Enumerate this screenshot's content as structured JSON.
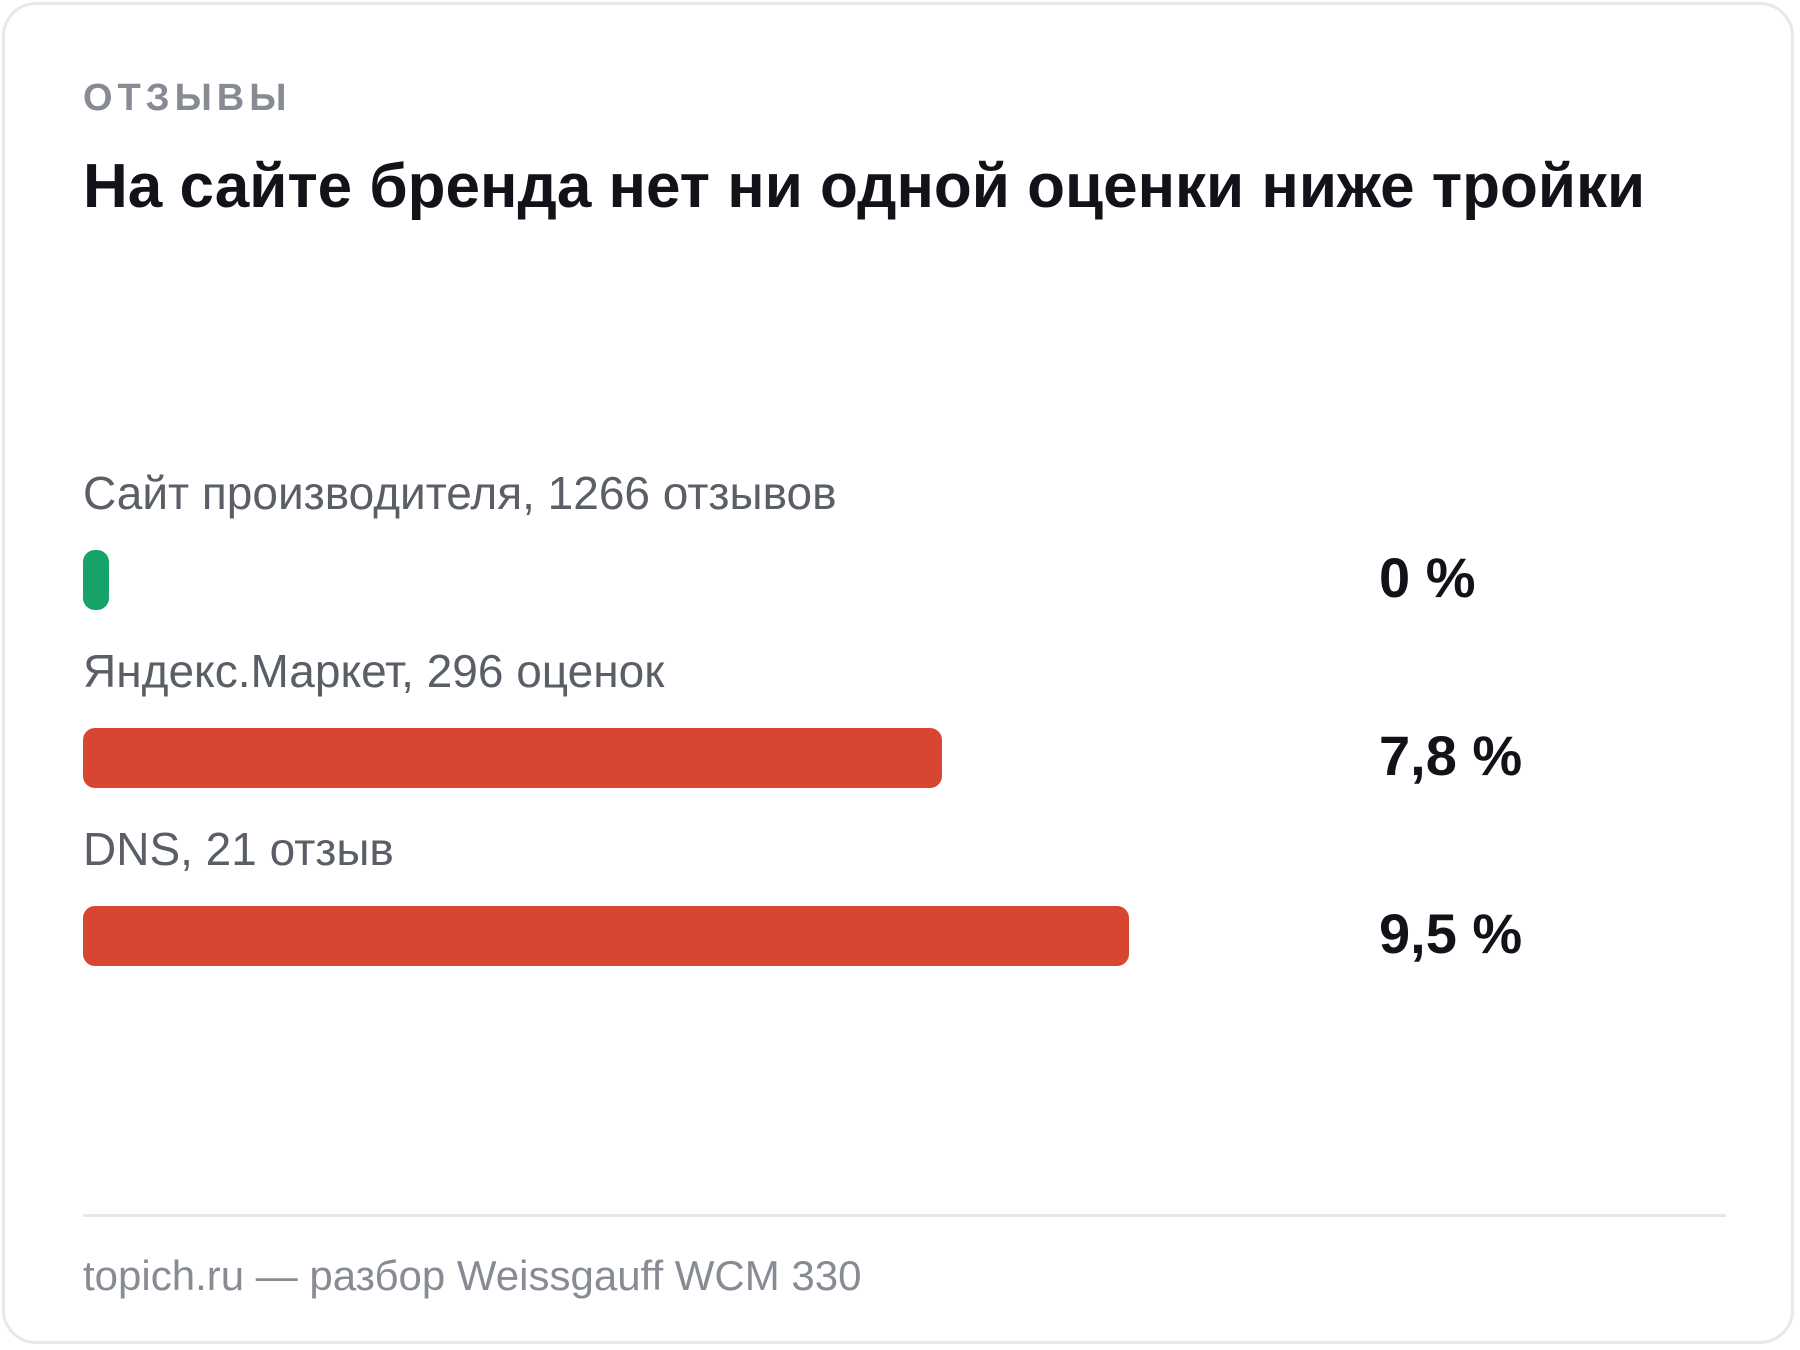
{
  "eyebrow": "ОТЗЫВЫ",
  "title": "На сайте бренда нет ни одной оценки ниже тройки",
  "footer": "topich.ru — разбор Weissgauff WCM 330",
  "colors": {
    "positive": "#16a36a",
    "negative": "#d84530"
  },
  "chart_data": {
    "type": "bar",
    "orientation": "horizontal",
    "categories": [
      "Сайт производителя, 1266 отзывов",
      "Яндекс.Маркет, 296 оценок",
      "DNS, 21 отзыв"
    ],
    "values": [
      0,
      7.8,
      9.5
    ],
    "value_labels": [
      "0 %",
      "7,8 %",
      "9,5 %"
    ],
    "bar_colors": [
      "#16a36a",
      "#d84530",
      "#d84530"
    ],
    "xlim": [
      0,
      10.9
    ],
    "grid": false,
    "legend": "none"
  }
}
